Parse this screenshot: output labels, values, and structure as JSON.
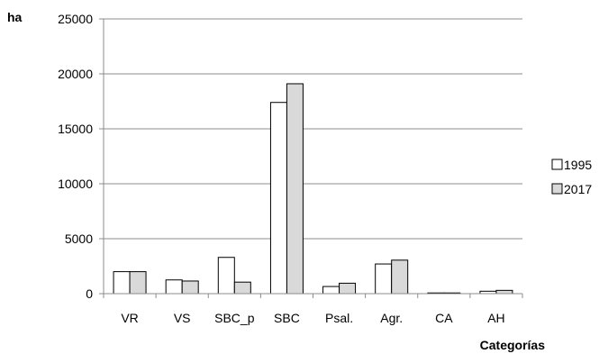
{
  "chart_data": {
    "type": "bar",
    "ylabel": "ha",
    "xlabel": "Categorías",
    "categories": [
      "VR",
      "VS",
      "SBC_p",
      "SBC",
      "Psal.",
      "Agr.",
      "CA",
      "AH"
    ],
    "series": [
      {
        "name": "1995",
        "values": [
          2000,
          1250,
          3300,
          17400,
          650,
          2700,
          60,
          220
        ],
        "color": "#ffffff"
      },
      {
        "name": "2017",
        "values": [
          2000,
          1150,
          1050,
          19100,
          950,
          3050,
          60,
          300
        ],
        "color": "#d9d9d9"
      }
    ],
    "ylim": [
      0,
      25000
    ],
    "yticks": [
      0,
      5000,
      10000,
      15000,
      20000,
      25000
    ],
    "grid": true,
    "legend": "right"
  }
}
